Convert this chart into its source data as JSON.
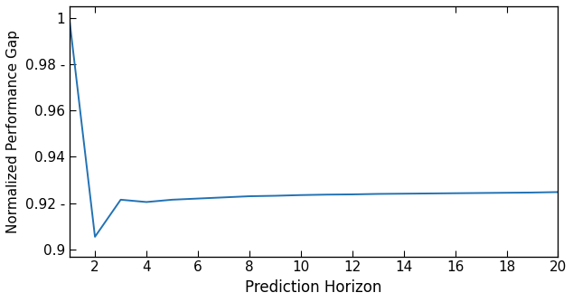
{
  "title": "",
  "xlabel": "Prediction Horizon",
  "ylabel": "Normalized Performance Gap",
  "line_color": "#2272B4",
  "line_width": 1.4,
  "xlim": [
    1,
    20
  ],
  "ylim": [
    0.897,
    1.005
  ],
  "yticks": [
    0.9,
    0.92,
    0.94,
    0.96,
    0.98,
    1.0
  ],
  "ytick_labels": [
    "0.9",
    "0.92 -",
    "0.94",
    "0.96",
    "0.98 -",
    "1"
  ],
  "xticks": [
    2,
    4,
    6,
    8,
    10,
    12,
    14,
    16,
    18,
    20
  ],
  "background_color": "#ffffff",
  "x": [
    1,
    2,
    3,
    4,
    5,
    6,
    7,
    8,
    9,
    10,
    11,
    12,
    13,
    14,
    15,
    16,
    17,
    18,
    19,
    20
  ],
  "y": [
    1.0,
    0.9055,
    0.9215,
    0.9205,
    0.9215,
    0.922,
    0.9225,
    0.923,
    0.9232,
    0.9235,
    0.9237,
    0.9238,
    0.924,
    0.9241,
    0.9242,
    0.9243,
    0.9244,
    0.9245,
    0.9246,
    0.9248
  ]
}
